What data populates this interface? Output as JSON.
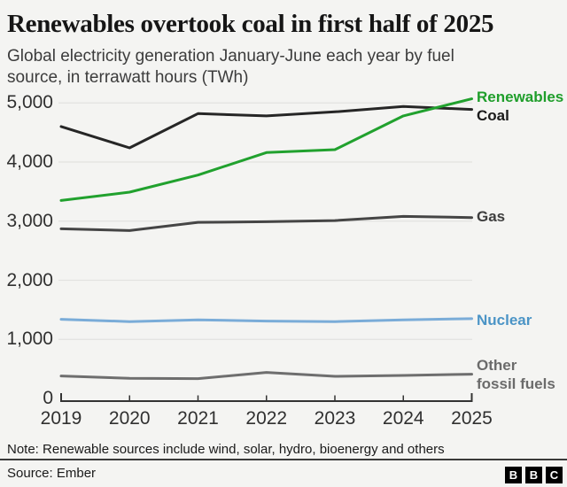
{
  "header": {
    "title": "Renewables overtook coal in first half of 2025",
    "subtitle": "Global electricity generation January-June each year by fuel source, in terrawatt hours (TWh)"
  },
  "chart_data": {
    "type": "line",
    "title": "Renewables overtook coal in first half of 2025",
    "subtitle": "Global electricity generation January-June each year by fuel source, in terrawatt hours (TWh)",
    "x": [
      2019,
      2020,
      2021,
      2022,
      2023,
      2024,
      2025
    ],
    "xticks": [
      "2019",
      "2020",
      "2021",
      "2022",
      "2023",
      "2024",
      "2025"
    ],
    "yticks": [
      "0",
      "1,000",
      "2,000",
      "3,000",
      "4,000",
      "5,000"
    ],
    "ytick_values": [
      0,
      1000,
      2000,
      3000,
      4000,
      5000
    ],
    "ylim": [
      0,
      5000
    ],
    "grid": "horizontal",
    "legend_position": "right-edge-labels",
    "unit": "TWh",
    "series": [
      {
        "name": "Renewables",
        "color": "#21a12e",
        "label_color": "#1f9e2b",
        "values": [
          3350,
          3490,
          3780,
          4160,
          4210,
          4780,
          5070
        ]
      },
      {
        "name": "Coal",
        "color": "#262626",
        "label_color": "#1a1a1a",
        "values": [
          4600,
          4240,
          4820,
          4780,
          4850,
          4940,
          4890
        ]
      },
      {
        "name": "Gas",
        "color": "#454545",
        "label_color": "#3d3d3d",
        "values": [
          2870,
          2840,
          2980,
          2990,
          3010,
          3080,
          3060
        ]
      },
      {
        "name": "Nuclear",
        "color": "#7aacd8",
        "label_color": "#4b94c6",
        "values": [
          1340,
          1300,
          1330,
          1310,
          1300,
          1330,
          1350
        ]
      },
      {
        "name": "Other fossil fuels",
        "color": "#6e6e6e",
        "label_color": "#6b6b6b",
        "values": [
          380,
          340,
          335,
          440,
          375,
          390,
          410
        ]
      }
    ],
    "colors": {
      "background": "#f4f4f2",
      "gridline": "#e2e2e0",
      "axis": "#333333"
    }
  },
  "footer": {
    "note": "Note: Renewable sources include wind, solar, hydro, bioenergy and others",
    "source": "Source: Ember",
    "logo_letters": [
      "B",
      "B",
      "C"
    ]
  }
}
